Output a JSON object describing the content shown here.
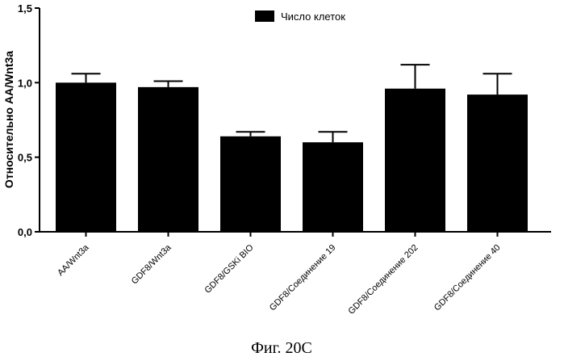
{
  "chart_data": {
    "type": "bar",
    "categories": [
      "AA/Wnt3a",
      "GDF8/Wnt3a",
      "GDF8/GSKi BIO",
      "GDF8/Соединение 19",
      "GDF8/Соединение 202",
      "GDF8/Соединение 40"
    ],
    "series": [
      {
        "name": "Число клеток",
        "values": [
          1.0,
          0.97,
          0.64,
          0.6,
          0.96,
          0.92
        ],
        "errors": [
          0.06,
          0.04,
          0.03,
          0.07,
          0.16,
          0.14
        ],
        "color": "#000000"
      }
    ],
    "ylabel": "Относительно AA/Wnt3a",
    "xlabel": "",
    "ylim": [
      0,
      1.5
    ],
    "yticks": [
      0,
      0.5,
      1.0,
      1.5
    ],
    "ytick_labels": [
      "0,0",
      "0,5",
      "1,0",
      "1,5"
    ],
    "legend_position": "top-center",
    "grid": false
  },
  "caption": "Фиг. 20С"
}
